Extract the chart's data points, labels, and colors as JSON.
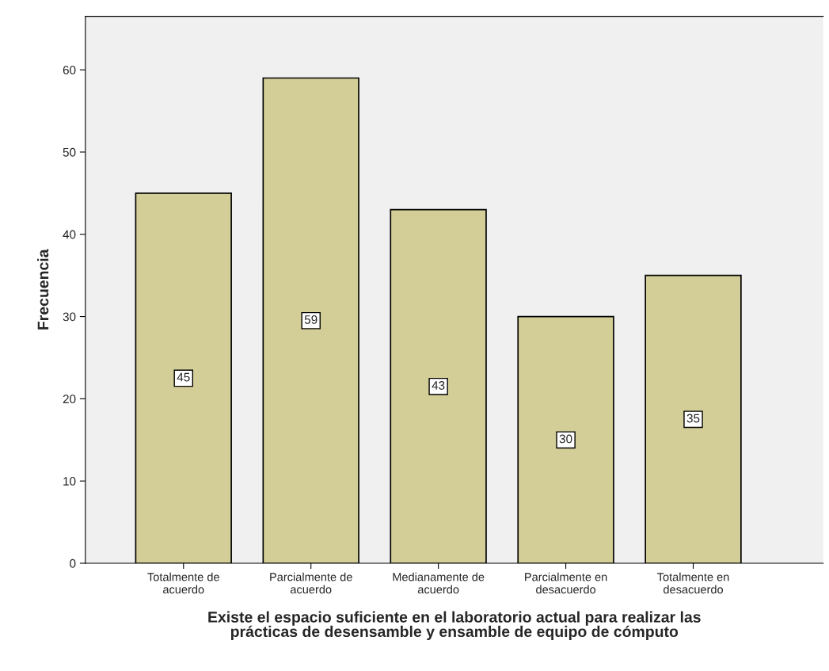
{
  "chart_data": {
    "type": "bar",
    "categories": [
      "Totalmente de\nacuerdo",
      "Parcialmente de\nacuerdo",
      "Medianamente de\nacuerdo",
      "Parcialmente en\ndesacuerdo",
      "Totalmente en\ndesacuerdo"
    ],
    "values": [
      45,
      59,
      43,
      30,
      35
    ],
    "color": "#d3ce97",
    "xlabel": "Existe el espacio suficiente en el laboratorio actual para realizar las\nprácticas de desensamble y ensamble de equipo de cómputo",
    "ylabel": "Frecuencia",
    "ylim": [
      0,
      66.5
    ],
    "yticks": [
      0,
      10,
      20,
      30,
      40,
      50,
      60
    ],
    "data_labels": true,
    "grid": false,
    "legend": false
  }
}
